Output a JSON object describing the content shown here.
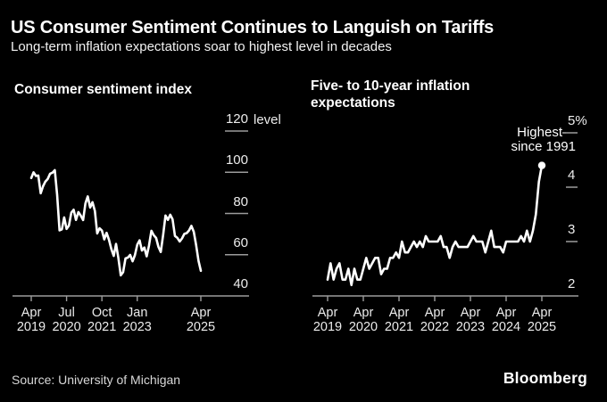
{
  "header": {
    "title": "US Consumer Sentiment Continues to Languish on Tariffs",
    "subtitle": "Long-term inflation expectations soar to highest level in decades"
  },
  "footer": {
    "source": "Source: University of Michigan",
    "brand": "Bloomberg"
  },
  "colors": {
    "background": "#000000",
    "text": "#ffffff",
    "axis": "#9c9c9c",
    "line": "#ffffff"
  },
  "chart_data": [
    {
      "id": "sentiment",
      "type": "line",
      "title": "Consumer sentiment index",
      "unit_label": "level",
      "x_start": "Apr 2019",
      "x_end": "Apr 2025",
      "x_interval": "monthly",
      "x_tick_labels": [
        [
          "Apr",
          "2019"
        ],
        [
          "Jul",
          "2020"
        ],
        [
          "Oct",
          "2021"
        ],
        [
          "Jan",
          "2023"
        ],
        [
          "Apr",
          "2025"
        ]
      ],
      "x_tick_months": [
        0,
        15,
        30,
        45,
        72
      ],
      "y_ticks": [
        120,
        100,
        80,
        60,
        40
      ],
      "y_tick_labels": [
        "120",
        "100",
        "80",
        "60",
        "40"
      ],
      "ylim": [
        40,
        128
      ],
      "grid": false,
      "values": [
        97.2,
        100.0,
        98.2,
        98.4,
        89.8,
        93.2,
        95.5,
        96.8,
        99.3,
        99.8,
        101.0,
        89.1,
        71.8,
        72.3,
        78.1,
        72.5,
        74.1,
        80.4,
        81.8,
        76.9,
        80.7,
        79.0,
        76.8,
        84.9,
        88.3,
        82.9,
        85.5,
        81.2,
        70.3,
        72.8,
        71.7,
        67.4,
        70.6,
        67.2,
        62.8,
        59.4,
        65.2,
        58.4,
        50.0,
        51.5,
        58.2,
        58.6,
        59.9,
        56.8,
        59.7,
        64.9,
        67.0,
        62.0,
        63.5,
        59.2,
        64.4,
        71.6,
        69.5,
        68.1,
        63.8,
        61.3,
        69.7,
        79.0,
        76.9,
        79.4,
        77.2,
        69.1,
        68.2,
        66.4,
        67.9,
        70.1,
        70.5,
        71.8,
        74.0,
        71.1,
        64.7,
        57.0,
        52.2
      ]
    },
    {
      "id": "inflation",
      "type": "line",
      "title": "Five- to 10-year inflation expectations",
      "title_lines": [
        "Five- to 10-year inflation",
        "expectations"
      ],
      "y_unit": "%",
      "x_start": "Apr 2019",
      "x_end": "Apr 2025",
      "x_interval": "monthly",
      "x_tick_labels": [
        [
          "Apr",
          "2019"
        ],
        [
          "Apr",
          "2020"
        ],
        [
          "Apr",
          "2021"
        ],
        [
          "Apr",
          "2022"
        ],
        [
          "Apr",
          "2023"
        ],
        [
          "Apr",
          "2024"
        ],
        [
          "Apr",
          "2025"
        ]
      ],
      "x_tick_months": [
        0,
        12,
        24,
        36,
        48,
        60,
        72
      ],
      "y_ticks": [
        5,
        4,
        3,
        2
      ],
      "y_tick_labels": [
        "5%",
        "4",
        "3",
        "2"
      ],
      "ylim": [
        2,
        5
      ],
      "grid": false,
      "end_dot": true,
      "annotation": {
        "line1": "Highest—",
        "line2": "since 1991"
      },
      "values": [
        2.3,
        2.6,
        2.3,
        2.5,
        2.6,
        2.3,
        2.3,
        2.5,
        2.2,
        2.5,
        2.3,
        2.3,
        2.5,
        2.7,
        2.5,
        2.6,
        2.7,
        2.7,
        2.4,
        2.5,
        2.5,
        2.7,
        2.7,
        2.8,
        2.7,
        3.0,
        2.8,
        2.8,
        2.9,
        3.0,
        2.9,
        3.0,
        2.9,
        3.1,
        3.0,
        3.0,
        3.0,
        3.0,
        3.1,
        2.9,
        2.9,
        2.7,
        2.9,
        3.0,
        2.9,
        2.9,
        2.9,
        2.9,
        3.0,
        3.1,
        3.0,
        3.0,
        3.0,
        2.8,
        3.0,
        3.2,
        2.9,
        2.9,
        2.9,
        2.8,
        3.0,
        3.0,
        3.0,
        3.0,
        3.0,
        3.1,
        3.0,
        3.2,
        3.0,
        3.2,
        3.5,
        4.1,
        4.4
      ]
    }
  ]
}
